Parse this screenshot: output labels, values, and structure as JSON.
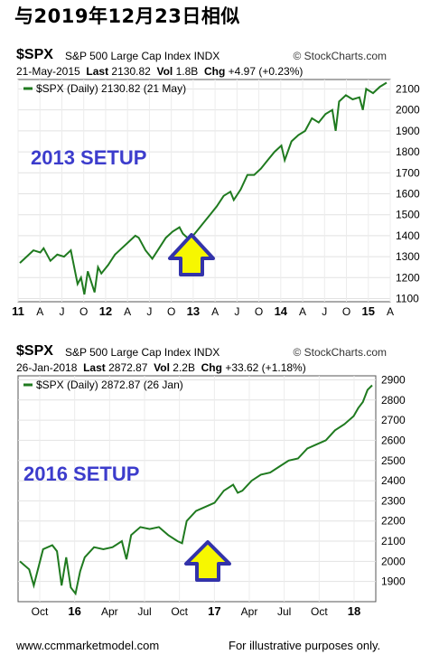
{
  "page": {
    "title": "与2019年12月23日相似",
    "footer_left": "www.ccmmarketmodel.com",
    "footer_right": "For illustrative purposes only."
  },
  "colors": {
    "series": "#1f7a1f",
    "setup_text": "#3c3ccc",
    "arrow_fill": "#f7f700",
    "arrow_stroke": "#3333aa"
  },
  "charts": [
    {
      "symbol": "$SPX",
      "name": "S&P 500 Large Cap Index",
      "exchange": "INDX",
      "copyright": "© StockCharts.com",
      "date": "21-May-2015",
      "last_label": "Last",
      "last": "2130.82",
      "vol_label": "Vol",
      "vol": "1.8B",
      "chg_label": "Chg",
      "chg": "+4.97 (+0.23%)",
      "legend": "$SPX (Daily) 2130.82 (21 May)",
      "setup_label": "2013 SETUP"
    },
    {
      "symbol": "$SPX",
      "name": "S&P 500 Large Cap Index",
      "exchange": "INDX",
      "copyright": "© StockCharts.com",
      "date": "26-Jan-2018",
      "last_label": "Last",
      "last": "2872.87",
      "vol_label": "Vol",
      "vol": "2.2B",
      "chg_label": "Chg",
      "chg": "+33.62 (+1.18%)",
      "legend": "$SPX (Daily) 2872.87 (26 Jan)",
      "setup_label": "2016 SETUP"
    }
  ],
  "chart_data": [
    {
      "type": "line",
      "title": "$SPX S&P 500 Large Cap Index INDX",
      "series": [
        {
          "name": "$SPX (Daily)",
          "x_range": [
            "2011-01",
            "2015-05-21"
          ],
          "values": [
            [
              0,
              1270
            ],
            [
              2,
              1300
            ],
            [
              4,
              1330
            ],
            [
              6,
              1320
            ],
            [
              7,
              1340
            ],
            [
              9,
              1280
            ],
            [
              11,
              1310
            ],
            [
              13,
              1300
            ],
            [
              15,
              1330
            ],
            [
              17,
              1170
            ],
            [
              18,
              1200
            ],
            [
              19,
              1120
            ],
            [
              20,
              1230
            ],
            [
              22,
              1130
            ],
            [
              23,
              1250
            ],
            [
              24,
              1220
            ],
            [
              26,
              1260
            ],
            [
              28,
              1310
            ],
            [
              30,
              1340
            ],
            [
              32,
              1370
            ],
            [
              34,
              1400
            ],
            [
              35,
              1390
            ],
            [
              37,
              1330
            ],
            [
              39,
              1290
            ],
            [
              41,
              1340
            ],
            [
              43,
              1390
            ],
            [
              45,
              1420
            ],
            [
              47,
              1440
            ],
            [
              48,
              1410
            ],
            [
              50,
              1380
            ],
            [
              52,
              1420
            ],
            [
              54,
              1460
            ],
            [
              56,
              1500
            ],
            [
              58,
              1540
            ],
            [
              60,
              1590
            ],
            [
              62,
              1610
            ],
            [
              63,
              1570
            ],
            [
              65,
              1620
            ],
            [
              67,
              1690
            ],
            [
              69,
              1690
            ],
            [
              71,
              1720
            ],
            [
              73,
              1760
            ],
            [
              75,
              1800
            ],
            [
              77,
              1830
            ],
            [
              78,
              1760
            ],
            [
              80,
              1850
            ],
            [
              82,
              1880
            ],
            [
              84,
              1900
            ],
            [
              86,
              1960
            ],
            [
              88,
              1940
            ],
            [
              90,
              1980
            ],
            [
              92,
              2000
            ],
            [
              93,
              1900
            ],
            [
              94,
              2040
            ],
            [
              96,
              2070
            ],
            [
              98,
              2050
            ],
            [
              100,
              2060
            ],
            [
              101,
              2000
            ],
            [
              102,
              2100
            ],
            [
              104,
              2080
            ],
            [
              106,
              2110
            ],
            [
              108,
              2130
            ]
          ]
        }
      ],
      "x_tick_labels": [
        "11",
        "A",
        "J",
        "O",
        "12",
        "A",
        "J",
        "O",
        "13",
        "A",
        "J",
        "O",
        "14",
        "A",
        "J",
        "O",
        "15",
        "A"
      ],
      "y_ticks": [
        1100,
        1200,
        1300,
        1400,
        1500,
        1600,
        1700,
        1800,
        1900,
        2000,
        2100
      ],
      "ylim": [
        1085,
        2145
      ],
      "annotations": [
        "2013 SETUP"
      ]
    },
    {
      "type": "line",
      "title": "$SPX S&P 500 Large Cap Index INDX",
      "series": [
        {
          "name": "$SPX (Daily)",
          "x_range": [
            "2015-09",
            "2018-01-26"
          ],
          "values": [
            [
              0,
              2000
            ],
            [
              2,
              1960
            ],
            [
              3,
              1880
            ],
            [
              5,
              2060
            ],
            [
              7,
              2080
            ],
            [
              8,
              2050
            ],
            [
              9,
              1880
            ],
            [
              10,
              2020
            ],
            [
              11,
              1870
            ],
            [
              12,
              1840
            ],
            [
              13,
              1950
            ],
            [
              14,
              2020
            ],
            [
              16,
              2070
            ],
            [
              18,
              2060
            ],
            [
              20,
              2070
            ],
            [
              22,
              2100
            ],
            [
              23,
              2010
            ],
            [
              24,
              2130
            ],
            [
              26,
              2170
            ],
            [
              28,
              2160
            ],
            [
              30,
              2170
            ],
            [
              32,
              2130
            ],
            [
              34,
              2100
            ],
            [
              35,
              2090
            ],
            [
              36,
              2200
            ],
            [
              38,
              2250
            ],
            [
              40,
              2270
            ],
            [
              42,
              2290
            ],
            [
              44,
              2350
            ],
            [
              46,
              2380
            ],
            [
              47,
              2340
            ],
            [
              48,
              2350
            ],
            [
              50,
              2400
            ],
            [
              52,
              2430
            ],
            [
              54,
              2440
            ],
            [
              56,
              2470
            ],
            [
              58,
              2500
            ],
            [
              60,
              2510
            ],
            [
              62,
              2560
            ],
            [
              64,
              2580
            ],
            [
              66,
              2600
            ],
            [
              68,
              2650
            ],
            [
              70,
              2680
            ],
            [
              72,
              2720
            ],
            [
              73,
              2760
            ],
            [
              74,
              2790
            ],
            [
              75,
              2850
            ],
            [
              76,
              2873
            ]
          ]
        }
      ],
      "x_tick_labels": [
        "Oct",
        "16",
        "Apr",
        "Jul",
        "Oct",
        "17",
        "Apr",
        "Jul",
        "Oct",
        "18"
      ],
      "y_ticks": [
        1900,
        2000,
        2100,
        2200,
        2300,
        2400,
        2500,
        2600,
        2700,
        2800,
        2900
      ],
      "ylim": [
        1800,
        2920
      ],
      "annotations": [
        "2016 SETUP"
      ]
    }
  ]
}
